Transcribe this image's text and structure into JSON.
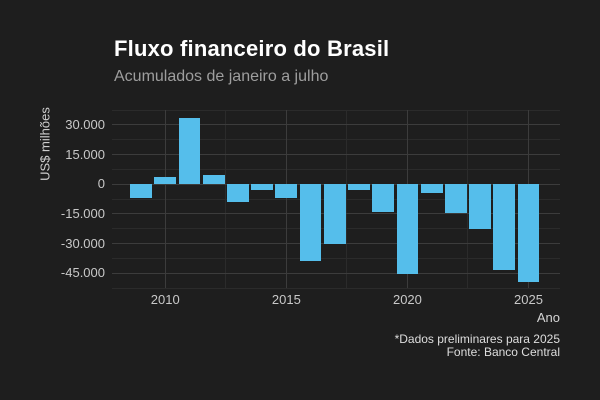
{
  "title": "Fluxo financeiro do Brasil",
  "subtitle": "Acumulados de janeiro a julho",
  "y_axis_title": "US$ milhões",
  "x_axis_title": "Ano",
  "caption": {
    "line1": "*Dados preliminares para 2025",
    "line2": "Fonte: Banco Central"
  },
  "colors": {
    "background": "#1E1E1E",
    "bar": "#55BEEB",
    "grid_major": "#3C3C3C",
    "grid_minor": "#2B2B2B",
    "title_text": "#FFFFFF",
    "subtitle_text": "#9E9E9E",
    "tick_text": "#C8C8C8",
    "axis_title_text": "#D5D5D5",
    "caption_text": "#DEDEDE"
  },
  "chart_data": {
    "type": "bar",
    "title": "Fluxo financeiro do Brasil",
    "subtitle": "Acumulados de janeiro a julho",
    "xlabel": "Ano",
    "ylabel": "US$ milhões",
    "categories": [
      2009,
      2010,
      2011,
      2012,
      2013,
      2014,
      2015,
      2016,
      2017,
      2018,
      2019,
      2020,
      2021,
      2022,
      2023,
      2024,
      2025
    ],
    "values": [
      -6900,
      3700,
      33600,
      4500,
      -9000,
      -2800,
      -7100,
      -39000,
      -30500,
      -3000,
      -14300,
      -45600,
      -4300,
      -14800,
      -22700,
      -43400,
      -49600
    ],
    "ylim": [
      -52500,
      37500
    ],
    "xlim": [
      2007.8,
      2026.3
    ],
    "y_ticks": {
      "values": [
        30000,
        15000,
        0,
        -15000,
        -30000,
        -45000
      ],
      "labels": [
        "30.000",
        "15.000",
        "0",
        "-15.000",
        "-30.000",
        "-45.000"
      ]
    },
    "y_minor_ticks": [
      37500,
      22500,
      7500,
      -7500,
      -22500,
      -37500,
      -52500
    ],
    "x_ticks": {
      "values": [
        2010,
        2015,
        2020,
        2025
      ],
      "labels": [
        "2010",
        "2015",
        "2020",
        "2025"
      ]
    },
    "x_minor_ticks": [
      2012.5,
      2017.5,
      2022.5
    ],
    "grid": true,
    "legend": false,
    "bar_width_years": 0.9
  }
}
